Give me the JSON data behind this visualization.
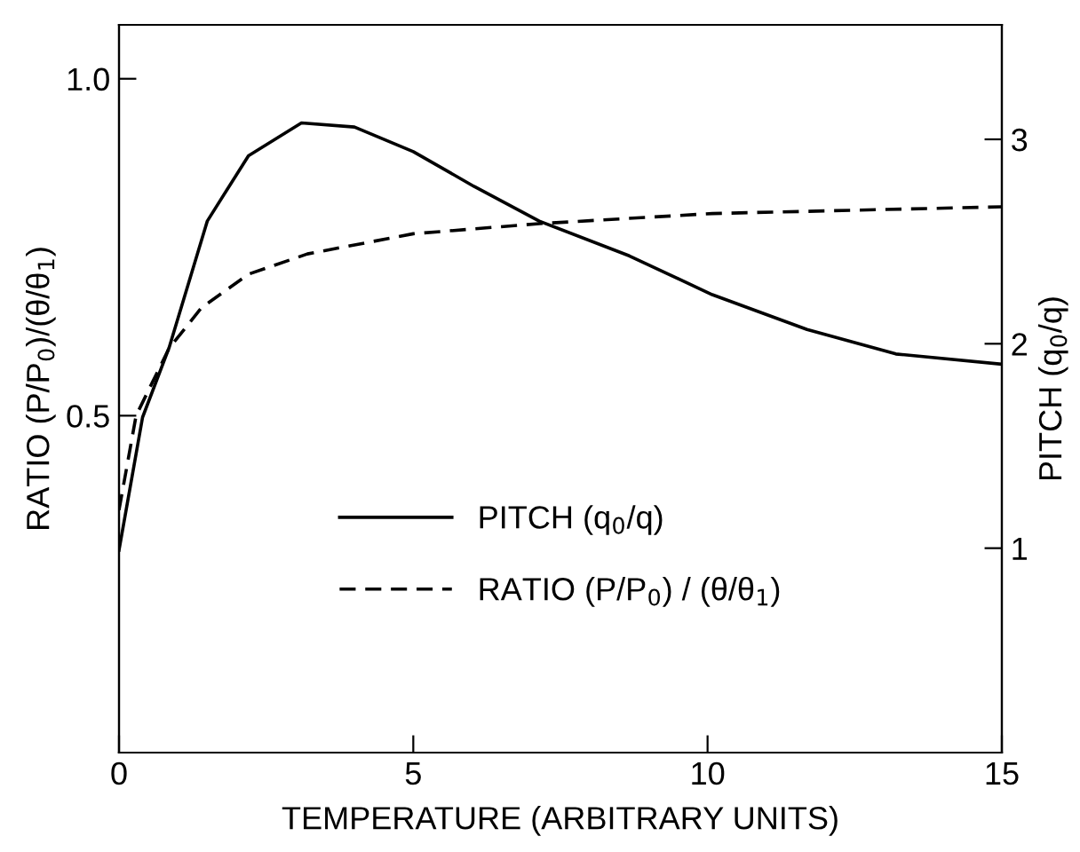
{
  "chart_data": {
    "type": "line",
    "xlabel": "TEMPERATURE (ARBITRARY UNITS)",
    "ylabel": "RATIO (P/P$_{0}$)/(θ/θ$_{1}$)",
    "y2label": "PITCH (q$_{0}$/q)",
    "xlim": [
      0,
      15
    ],
    "xticks": [
      0,
      5,
      10,
      15
    ],
    "ylim": [
      0,
      1.08
    ],
    "yticks": [
      0.5,
      {
        "value": 1.0,
        "label": "1.0"
      }
    ],
    "y2lim": [
      0,
      3.56
    ],
    "y2ticks": [
      1,
      2,
      3
    ],
    "legend": "center",
    "grid": false,
    "marker": "none",
    "series": [
      {
        "name": "PITCH (q$_{0}$/q)",
        "color": "#000000",
        "axis": "y2",
        "line_style": "solid",
        "x": [
          0,
          0.4,
          0.85,
          1.5,
          2.2,
          3.1,
          4.0,
          5.0,
          6.03,
          7.14,
          8.67,
          10.08,
          11.69,
          13.2,
          15
        ],
        "values": [
          0.99,
          1.64,
          1.98,
          2.6,
          2.92,
          3.08,
          3.06,
          2.94,
          2.77,
          2.6,
          2.43,
          2.24,
          2.07,
          1.95,
          1.9
        ]
      },
      {
        "name": "RATIO (P/P$_{0}$) / (θ/θ$_{1}$)",
        "color": "#000000",
        "axis": "y",
        "line_style": "dashed",
        "x": [
          0,
          0.29,
          0.85,
          1.4,
          2.2,
          3.2,
          5.0,
          7.14,
          10.08,
          15
        ],
        "values": [
          0.36,
          0.5,
          0.6,
          0.66,
          0.71,
          0.74,
          0.77,
          0.785,
          0.8,
          0.81
        ]
      }
    ]
  }
}
